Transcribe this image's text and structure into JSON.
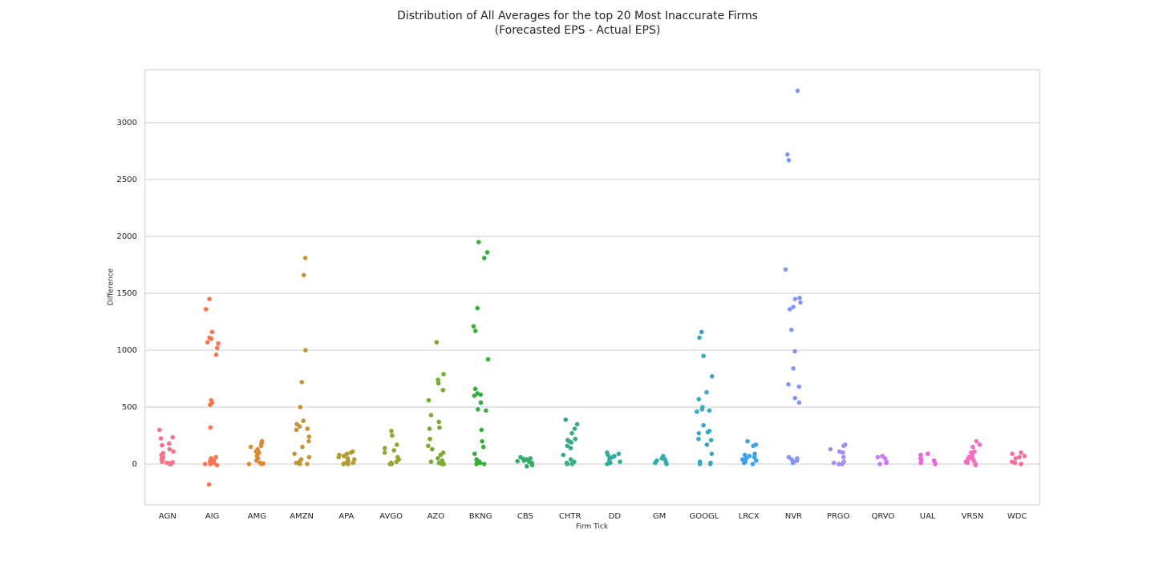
{
  "chart_data": {
    "type": "strip",
    "title": "Distribution of All Averages for the top 20 Most Inaccurate Firms",
    "subtitle": "(Forecasted EPS - Actual EPS)",
    "xlabel": "Firm Tick",
    "ylabel": "Difference",
    "categories": [
      "AGN",
      "AIG",
      "AMG",
      "AMZN",
      "APA",
      "AVGO",
      "AZO",
      "BKNG",
      "CBS",
      "CHTR",
      "DD",
      "GM",
      "GOOGL",
      "LRCX",
      "NVR",
      "PRGO",
      "QRVO",
      "UAL",
      "VRSN",
      "WDC"
    ],
    "colors": [
      "#f77189",
      "#f7754f",
      "#dc8932",
      "#c39532",
      "#ae9d31",
      "#97a431",
      "#77ab31",
      "#33b039",
      "#35ad6b",
      "#36ab88",
      "#37aa9d",
      "#38a8af",
      "#39a7c1",
      "#3ba3ec",
      "#8197f4",
      "#a48cf4",
      "#cc7af4",
      "#f461dd",
      "#f56cc0",
      "#f66ea0"
    ],
    "values": [
      [
        300,
        235,
        225,
        180,
        165,
        130,
        110,
        95,
        80,
        60,
        45,
        30,
        20,
        10,
        5,
        0,
        0,
        5,
        15
      ],
      [
        1450,
        1360,
        1160,
        1110,
        1100,
        1070,
        1060,
        1020,
        960,
        560,
        540,
        520,
        320,
        60,
        50,
        40,
        30,
        20,
        10,
        0,
        0,
        -10,
        -180
      ],
      [
        200,
        190,
        180,
        160,
        150,
        130,
        110,
        100,
        90,
        70,
        50,
        30,
        10,
        0,
        0,
        5
      ],
      [
        1810,
        1660,
        1000,
        720,
        500,
        380,
        350,
        330,
        310,
        300,
        240,
        200,
        150,
        90,
        60,
        40,
        20,
        10,
        0,
        0
      ],
      [
        110,
        100,
        90,
        80,
        70,
        60,
        50,
        40,
        30,
        20,
        10,
        0,
        0,
        5
      ],
      [
        290,
        250,
        170,
        140,
        120,
        100,
        60,
        40,
        20,
        10,
        0,
        0
      ],
      [
        1070,
        790,
        740,
        710,
        650,
        560,
        430,
        370,
        320,
        310,
        220,
        160,
        130,
        100,
        80,
        50,
        30,
        20,
        10,
        0,
        0
      ],
      [
        1950,
        1860,
        1810,
        1370,
        1210,
        1170,
        920,
        660,
        620,
        610,
        600,
        540,
        480,
        470,
        300,
        200,
        150,
        90,
        40,
        30,
        20,
        10,
        0,
        0
      ],
      [
        60,
        50,
        40,
        30,
        20,
        10,
        0,
        -10,
        -20,
        45,
        25
      ],
      [
        390,
        350,
        310,
        270,
        220,
        210,
        200,
        190,
        160,
        140,
        80,
        40,
        20,
        10,
        0,
        0
      ],
      [
        100,
        90,
        80,
        70,
        60,
        50,
        30,
        20,
        10,
        0
      ],
      [
        70,
        50,
        40,
        30,
        20,
        10,
        0
      ],
      [
        1160,
        1110,
        950,
        770,
        630,
        570,
        500,
        480,
        470,
        460,
        340,
        290,
        280,
        270,
        220,
        210,
        170,
        90,
        20,
        10,
        0,
        0
      ],
      [
        200,
        170,
        160,
        90,
        80,
        70,
        60,
        50,
        40,
        30,
        20,
        10,
        0
      ],
      [
        3280,
        2720,
        2670,
        1710,
        1460,
        1450,
        1420,
        1380,
        1360,
        1180,
        990,
        840,
        700,
        680,
        580,
        540,
        60,
        50,
        40,
        30,
        20,
        10
      ],
      [
        170,
        160,
        130,
        110,
        100,
        60,
        20,
        10,
        0,
        0
      ],
      [
        70,
        60,
        50,
        20,
        10,
        0
      ],
      [
        90,
        80,
        50,
        40,
        30,
        10,
        0
      ],
      [
        200,
        170,
        150,
        110,
        100,
        80,
        70,
        60,
        50,
        40,
        30,
        20,
        10,
        0,
        -10
      ],
      [
        100,
        90,
        70,
        60,
        50,
        20,
        10,
        0
      ]
    ],
    "ylim": [
      -359,
      3465
    ],
    "yticks": [
      0,
      500,
      1000,
      1500,
      2000,
      2500,
      3000
    ],
    "grid": true
  }
}
